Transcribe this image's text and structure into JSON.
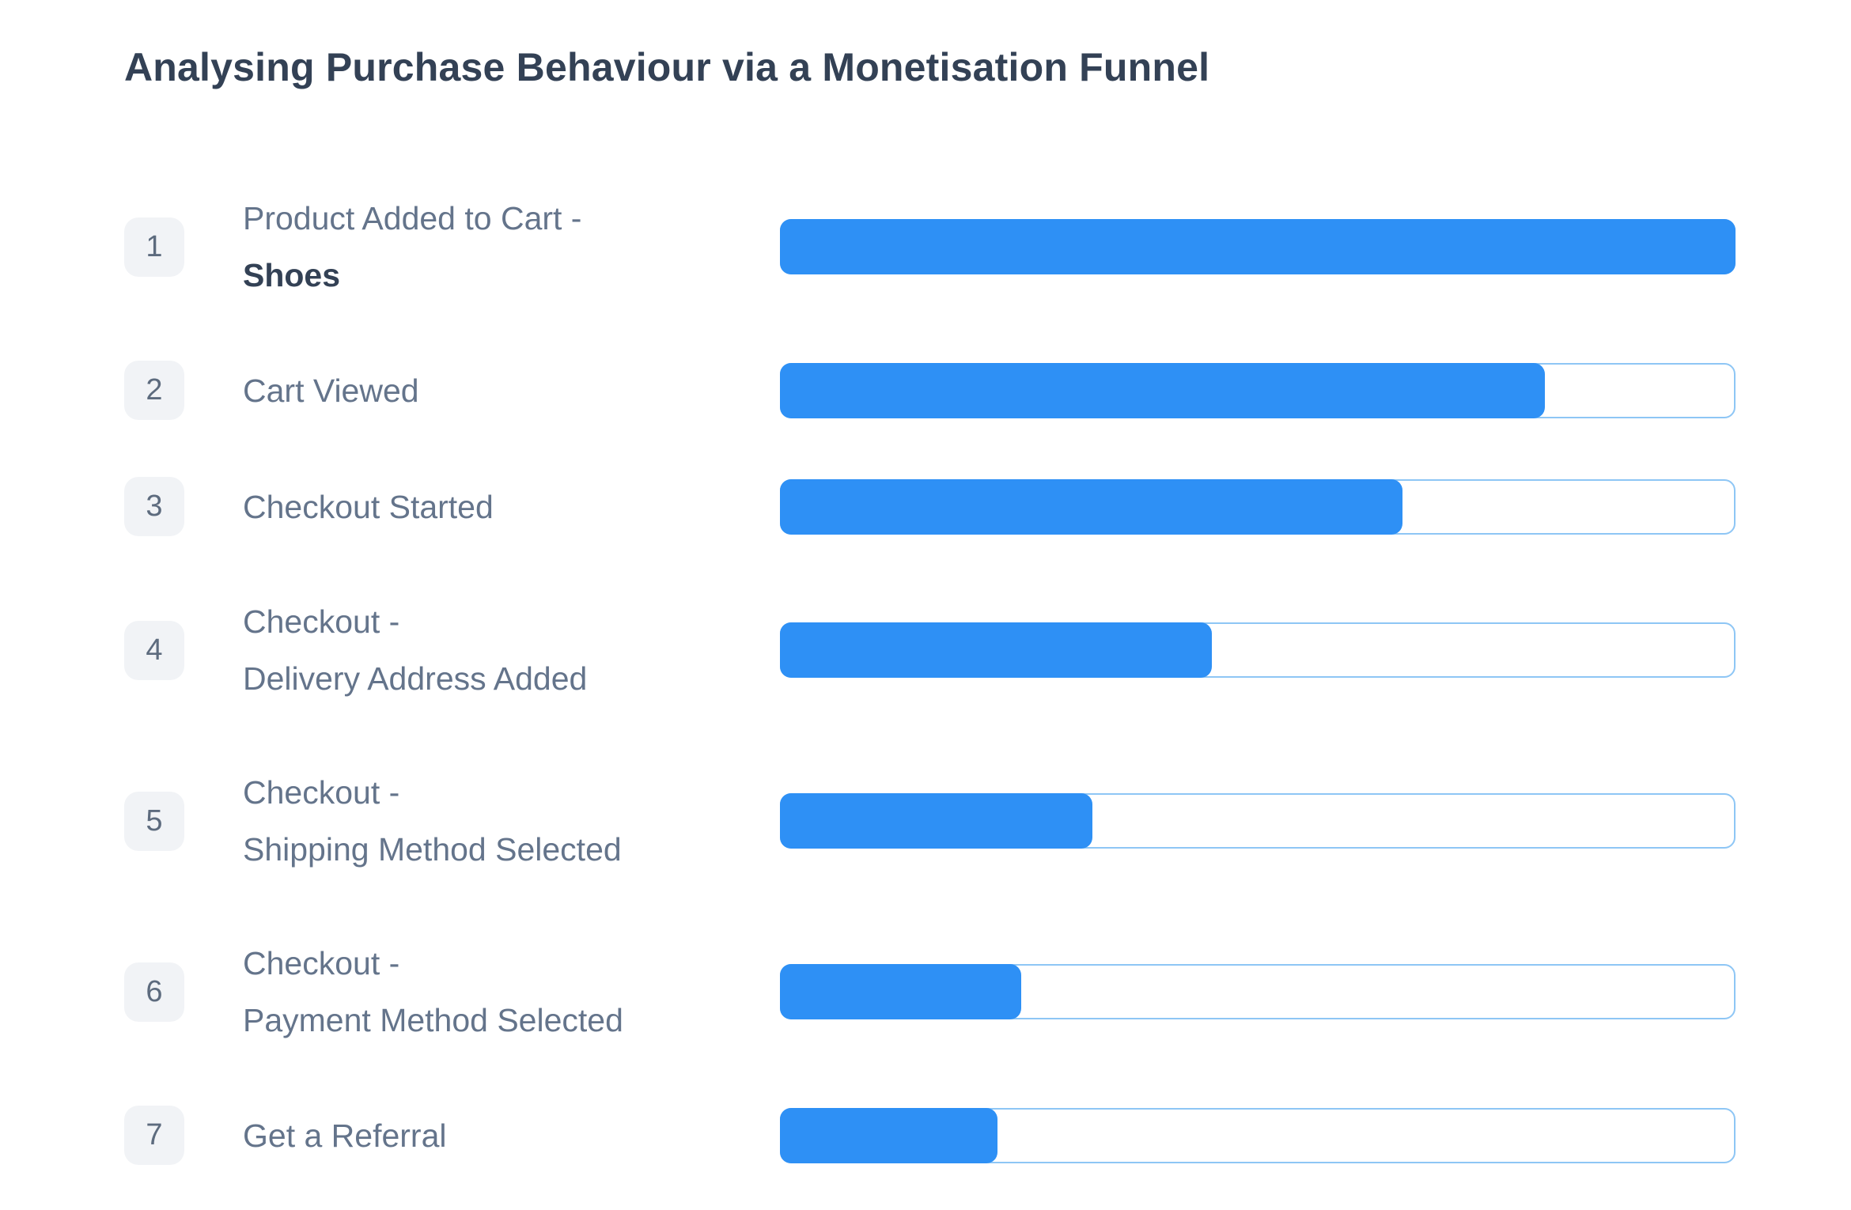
{
  "title": "Analysing Purchase Behaviour via a Monetisation Funnel",
  "colors": {
    "bar_fill": "#2e90f5",
    "bar_track_border": "#8ec6f5",
    "badge_background": "#f1f3f6",
    "badge_text": "#5d6b7e",
    "label_text": "#64748b",
    "label_bold_text": "#334155",
    "title_text": "#334155"
  },
  "steps": [
    {
      "num": "1",
      "line1": "Product Added to Cart -",
      "line2": "Shoes",
      "line2_bold": true,
      "value_pct": 100
    },
    {
      "num": "2",
      "line1": "Cart Viewed",
      "line2": "",
      "line2_bold": false,
      "value_pct": 80
    },
    {
      "num": "3",
      "line1": "Checkout Started",
      "line2": "",
      "line2_bold": false,
      "value_pct": 65
    },
    {
      "num": "4",
      "line1": "Checkout -",
      "line2": "Delivery Address Added",
      "line2_bold": false,
      "value_pct": 45
    },
    {
      "num": "5",
      "line1": "Checkout -",
      "line2": "Shipping Method Selected",
      "line2_bold": false,
      "value_pct": 32.5
    },
    {
      "num": "6",
      "line1": "Checkout -",
      "line2": "Payment Method Selected",
      "line2_bold": false,
      "value_pct": 25
    },
    {
      "num": "7",
      "line1": "Get a Referral",
      "line2": "",
      "line2_bold": false,
      "value_pct": 22.5
    }
  ],
  "chart_data": {
    "type": "bar",
    "orientation": "horizontal",
    "title": "Analysing Purchase Behaviour via a Monetisation Funnel",
    "categories": [
      "Product Added to Cart - Shoes",
      "Cart Viewed",
      "Checkout Started",
      "Checkout - Delivery Address Added",
      "Checkout - Shipping Method Selected",
      "Checkout - Payment Method Selected",
      "Get a Referral"
    ],
    "step_numbers": [
      1,
      2,
      3,
      4,
      5,
      6,
      7
    ],
    "values": [
      100,
      80,
      65,
      45,
      32.5,
      25,
      22.5
    ],
    "value_unit": "percent of first step (estimated from bar lengths; no numeric labels shown)",
    "xlim": [
      0,
      100
    ],
    "bar_color": "#2e90f5",
    "track_border_color": "#8ec6f5",
    "grid": false,
    "legend": false,
    "axes_labels_shown": false
  }
}
